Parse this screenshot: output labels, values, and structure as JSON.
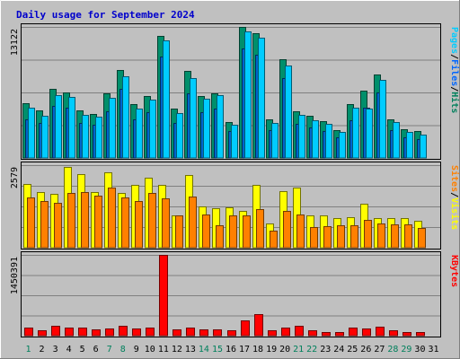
{
  "chart_data": {
    "type": "bar",
    "title": "Daily usage for September 2024",
    "categories": [
      "1",
      "2",
      "3",
      "4",
      "5",
      "6",
      "7",
      "8",
      "9",
      "10",
      "11",
      "12",
      "13",
      "14",
      "15",
      "16",
      "17",
      "18",
      "19",
      "20",
      "21",
      "22",
      "23",
      "24",
      "25",
      "26",
      "27",
      "28",
      "29",
      "30",
      "31"
    ],
    "weekend_days": [
      "1",
      "7",
      "8",
      "14",
      "15",
      "21",
      "22",
      "28",
      "29"
    ],
    "panels": [
      {
        "name": "hits-files-pages",
        "ytick_label": "13122",
        "ymax": 13122,
        "legend": [
          {
            "text": "Pages",
            "color": "#00ccff"
          },
          {
            "text": "/",
            "color": "#000000"
          },
          {
            "text": "Files",
            "color": "#0066ff"
          },
          {
            "text": "/",
            "color": "#000000"
          },
          {
            "text": "Hits",
            "color": "#00805c"
          }
        ],
        "series": [
          {
            "name": "Hits",
            "color": "#008f6b",
            "values": [
              5500,
              4800,
              6900,
              6600,
              4800,
              4400,
              6500,
              8800,
              5400,
              6200,
              12200,
              4900,
              8700,
              6200,
              6500,
              3600,
              13100,
              12500,
              3900,
              9900,
              4700,
              4200,
              3700,
              2800,
              5400,
              6700,
              8400,
              3900,
              2900,
              2700,
              0
            ]
          },
          {
            "name": "Files",
            "color": "#0066cc",
            "values": [
              3900,
              3500,
              5200,
              5000,
              3500,
              3300,
              4700,
              6900,
              3900,
              4600,
              10200,
              3500,
              6500,
              4600,
              4900,
              2700,
              11000,
              10300,
              2800,
              8000,
              3400,
              3100,
              2700,
              2100,
              3800,
              5000,
              6600,
              2800,
              2100,
              1900,
              0
            ]
          },
          {
            "name": "Pages",
            "color": "#00ccff",
            "values": [
              5000,
              4200,
              6300,
              6100,
              4300,
              4100,
              6000,
              8200,
              4900,
              5800,
              11800,
              4500,
              8000,
              5900,
              6300,
              3300,
              12700,
              12000,
              3500,
              9300,
              4300,
              3800,
              3400,
              2600,
              5000,
              4900,
              7800,
              3600,
              2600,
              2300,
              0
            ]
          }
        ]
      },
      {
        "name": "visits-sites",
        "ytick_label": "2579",
        "ymax": 2579,
        "legend": [
          {
            "text": "Sites",
            "color": "#ff8000"
          },
          {
            "text": "/",
            "color": "#000000"
          },
          {
            "text": "Visits",
            "color": "#ffff00"
          }
        ],
        "series": [
          {
            "name": "Visits",
            "color": "#ffff00",
            "values": [
              2000,
              1750,
              1680,
              2520,
              2300,
              1750,
              2350,
              1700,
              1950,
              2200,
              1950,
              1000,
              2260,
              1300,
              1220,
              1260,
              1150,
              1950,
              760,
              1760,
              1870,
              1000,
              1000,
              920,
              960,
              1370,
              920,
              920,
              930,
              830,
              0
            ]
          },
          {
            "name": "Sites",
            "color": "#ff8000",
            "values": [
              1580,
              1450,
              1400,
              1720,
              1750,
              1630,
              1880,
              1560,
              1450,
              1720,
              1550,
              1000,
              1600,
              1030,
              700,
              1000,
              1000,
              1200,
              520,
              1160,
              1030,
              650,
              680,
              690,
              700,
              860,
              760,
              720,
              720,
              630,
              0
            ]
          }
        ]
      },
      {
        "name": "kbytes",
        "ytick_label": "1450391",
        "ymax": 1450391,
        "legend": [
          {
            "text": "KBytes",
            "color": "#ff0000"
          }
        ],
        "series": [
          {
            "name": "KBytes",
            "color": "#ff0000",
            "values": [
              150000,
              100000,
              180000,
              140000,
              140000,
              110000,
              130000,
              170000,
              130000,
              140000,
              1450000,
              110000,
              140000,
              120000,
              120000,
              90000,
              280000,
              380000,
              100000,
              150000,
              170000,
              90000,
              60000,
              60000,
              140000,
              130000,
              160000,
              90000,
              70000,
              60000,
              0
            ]
          }
        ]
      }
    ]
  }
}
